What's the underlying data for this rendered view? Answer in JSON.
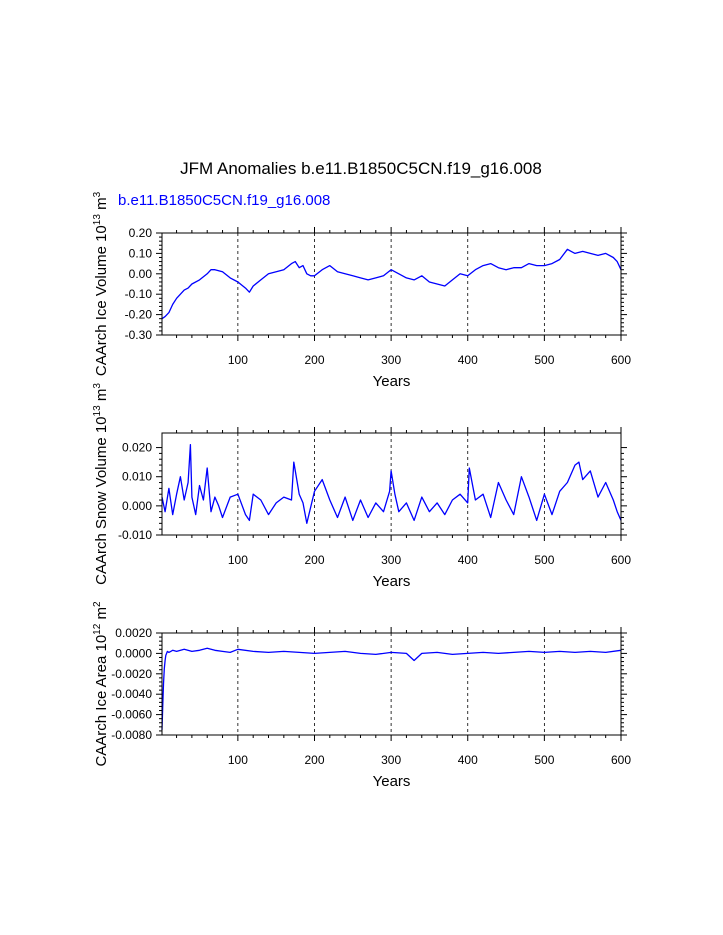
{
  "title": "JFM Anomalies b.e11.B1850C5CN.f19_g16.008",
  "colors": {
    "series": "#0000ff",
    "axis": "#000000",
    "grid": "#000000",
    "background": "#ffffff"
  },
  "chart_data": [
    {
      "type": "line",
      "title": "",
      "subtitle": "b.e11.B1850C5CN.f19_g16.008",
      "ylabel_parts": {
        "name": "CAArch Ice Volume 10",
        "exponent": "13",
        "units": " m",
        "units_exponent": "3"
      },
      "xlabel": "Years",
      "xlim": [
        1,
        600
      ],
      "ylim": [
        -0.3,
        0.2
      ],
      "xticks": [
        100,
        200,
        300,
        400,
        500,
        600
      ],
      "xtick_labels": [
        "100",
        "200",
        "300",
        "400",
        "500",
        "600"
      ],
      "yticks": [
        -0.3,
        -0.2,
        -0.1,
        0.0,
        0.1,
        0.2
      ],
      "ytick_labels": [
        "-0.30",
        "-0.20",
        "-0.10",
        "0.00",
        "0.10",
        "0.20"
      ],
      "vgrid": [
        100,
        200,
        300,
        400,
        500
      ],
      "series": [
        {
          "name": "b.e11.B1850C5CN.f19_g16.008",
          "x": [
            1,
            5,
            10,
            15,
            20,
            25,
            30,
            35,
            40,
            50,
            60,
            65,
            70,
            80,
            90,
            100,
            110,
            115,
            120,
            130,
            140,
            150,
            160,
            170,
            175,
            180,
            185,
            190,
            195,
            200,
            210,
            220,
            230,
            240,
            250,
            260,
            270,
            280,
            290,
            300,
            310,
            320,
            330,
            340,
            350,
            360,
            370,
            380,
            390,
            400,
            410,
            420,
            430,
            440,
            450,
            460,
            470,
            480,
            490,
            500,
            510,
            520,
            530,
            535,
            540,
            550,
            560,
            570,
            580,
            590,
            595,
            600
          ],
          "values": [
            -0.22,
            -0.21,
            -0.19,
            -0.15,
            -0.12,
            -0.1,
            -0.08,
            -0.07,
            -0.05,
            -0.03,
            0.0,
            0.02,
            0.02,
            0.01,
            -0.02,
            -0.04,
            -0.07,
            -0.09,
            -0.06,
            -0.03,
            0.0,
            0.01,
            0.02,
            0.05,
            0.06,
            0.03,
            0.04,
            0.0,
            -0.01,
            -0.01,
            0.02,
            0.04,
            0.01,
            0.0,
            -0.01,
            -0.02,
            -0.03,
            -0.02,
            -0.01,
            0.02,
            0.0,
            -0.02,
            -0.03,
            -0.01,
            -0.04,
            -0.05,
            -0.06,
            -0.03,
            0.0,
            -0.01,
            0.02,
            0.04,
            0.05,
            0.03,
            0.02,
            0.03,
            0.03,
            0.05,
            0.04,
            0.04,
            0.05,
            0.07,
            0.12,
            0.11,
            0.1,
            0.11,
            0.1,
            0.09,
            0.1,
            0.08,
            0.06,
            0.02
          ]
        }
      ]
    },
    {
      "type": "line",
      "title": "",
      "ylabel_parts": {
        "name": "CAArch Snow Volume 10",
        "exponent": "13",
        "units": " m",
        "units_exponent": "3"
      },
      "xlabel": "Years",
      "xlim": [
        1,
        600
      ],
      "ylim": [
        -0.01,
        0.025
      ],
      "xticks": [
        100,
        200,
        300,
        400,
        500,
        600
      ],
      "xtick_labels": [
        "100",
        "200",
        "300",
        "400",
        "500",
        "600"
      ],
      "yticks": [
        -0.01,
        0.0,
        0.01,
        0.02
      ],
      "ytick_labels": [
        "-0.010",
        "0.000",
        "0.010",
        "0.020"
      ],
      "vgrid": [
        100,
        200,
        300,
        400,
        500
      ],
      "series": [
        {
          "name": "b.e11.B1850C5CN.f19_g16.008",
          "x": [
            1,
            5,
            10,
            15,
            20,
            25,
            30,
            35,
            38,
            40,
            45,
            50,
            55,
            60,
            65,
            70,
            75,
            80,
            90,
            100,
            110,
            115,
            120,
            130,
            140,
            150,
            160,
            170,
            173,
            175,
            180,
            185,
            190,
            200,
            210,
            220,
            230,
            240,
            250,
            260,
            270,
            280,
            290,
            298,
            300,
            305,
            310,
            320,
            330,
            340,
            350,
            360,
            370,
            380,
            390,
            400,
            402,
            410,
            420,
            430,
            440,
            450,
            460,
            470,
            480,
            490,
            500,
            510,
            520,
            530,
            540,
            545,
            550,
            560,
            570,
            580,
            590,
            595,
            600
          ],
          "values": [
            0.003,
            -0.002,
            0.006,
            -0.003,
            0.004,
            0.01,
            0.002,
            0.008,
            0.021,
            0.003,
            -0.003,
            0.007,
            0.002,
            0.013,
            -0.002,
            0.003,
            0.0,
            -0.004,
            0.003,
            0.004,
            -0.003,
            -0.005,
            0.004,
            0.002,
            -0.003,
            0.001,
            0.003,
            0.002,
            0.015,
            0.012,
            0.004,
            0.001,
            -0.006,
            0.005,
            0.009,
            0.002,
            -0.004,
            0.003,
            -0.005,
            0.002,
            -0.004,
            0.001,
            -0.002,
            0.005,
            0.012,
            0.004,
            -0.002,
            0.001,
            -0.005,
            0.003,
            -0.002,
            0.001,
            -0.003,
            0.002,
            0.004,
            0.001,
            0.013,
            0.002,
            0.004,
            -0.004,
            0.008,
            0.002,
            -0.003,
            0.01,
            0.003,
            -0.005,
            0.004,
            -0.003,
            0.005,
            0.008,
            0.014,
            0.015,
            0.009,
            0.012,
            0.003,
            0.008,
            0.002,
            -0.002,
            -0.005
          ]
        }
      ]
    },
    {
      "type": "line",
      "title": "",
      "ylabel_parts": {
        "name": "CAArch Ice Area 10",
        "exponent": "12",
        "units": " m",
        "units_exponent": "2"
      },
      "xlabel": "Years",
      "xlim": [
        1,
        600
      ],
      "ylim": [
        -0.008,
        0.002
      ],
      "xticks": [
        100,
        200,
        300,
        400,
        500,
        600
      ],
      "xtick_labels": [
        "100",
        "200",
        "300",
        "400",
        "500",
        "600"
      ],
      "yticks": [
        -0.008,
        -0.006,
        -0.004,
        -0.002,
        0.0,
        0.002
      ],
      "ytick_labels": [
        "-0.0080",
        "-0.0060",
        "-0.0040",
        "-0.0020",
        "0.0000",
        "0.0020"
      ],
      "vgrid": [
        100,
        200,
        300,
        400,
        500
      ],
      "series": [
        {
          "name": "b.e11.B1850C5CN.f19_g16.008",
          "x": [
            1,
            2,
            3,
            4,
            5,
            6,
            8,
            10,
            15,
            20,
            30,
            40,
            50,
            60,
            70,
            80,
            90,
            100,
            120,
            140,
            160,
            180,
            200,
            220,
            240,
            260,
            280,
            300,
            320,
            330,
            340,
            360,
            380,
            400,
            420,
            440,
            460,
            480,
            500,
            520,
            540,
            560,
            580,
            600
          ],
          "values": [
            -0.0075,
            -0.005,
            -0.003,
            -0.0015,
            -0.0007,
            -0.0002,
            0.0002,
            0.0001,
            0.0003,
            0.0002,
            0.0004,
            0.0002,
            0.0003,
            0.0005,
            0.0003,
            0.0002,
            0.0001,
            0.0004,
            0.0002,
            0.0001,
            0.0002,
            0.0001,
            0.0,
            0.0001,
            0.0002,
            0.0,
            -0.0001,
            0.0001,
            0.0,
            -0.0007,
            0.0,
            0.0001,
            -0.0001,
            0.0,
            0.0001,
            0.0,
            0.0001,
            0.0002,
            0.0001,
            0.0002,
            0.0001,
            0.0002,
            0.0001,
            0.0003
          ]
        }
      ]
    }
  ]
}
